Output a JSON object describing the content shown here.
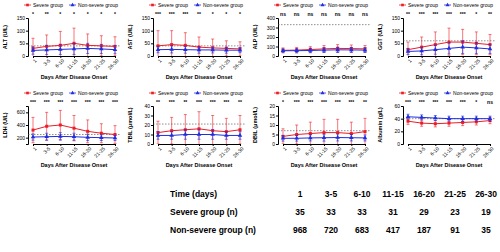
{
  "chart_data": [
    {
      "type": "line",
      "ylabel": "ALT (U/L)",
      "xlabel": "Days After Disease Onset",
      "categories": [
        "1",
        "3-5",
        "6-10",
        "11-15",
        "16-20",
        "21-25",
        "26-30"
      ],
      "ylim": [
        0,
        150
      ],
      "yticks": [
        0,
        50,
        100,
        150
      ],
      "reference_line": 40,
      "annotations": [
        "*",
        "**",
        "*",
        "*",
        "*",
        "*",
        "*"
      ],
      "series": [
        {
          "name": "Severe group",
          "color": "#ee1c25",
          "marker": "square",
          "values": [
            30,
            38,
            42,
            50,
            42,
            40,
            38
          ],
          "errors": [
            40,
            45,
            55,
            60,
            45,
            40,
            38
          ]
        },
        {
          "name": "Non-severe group",
          "color": "#1f2fe0",
          "marker": "triangle",
          "values": [
            22,
            24,
            26,
            28,
            30,
            28,
            25
          ],
          "errors": [
            15,
            18,
            20,
            22,
            20,
            18,
            16
          ]
        }
      ]
    },
    {
      "type": "line",
      "ylabel": "AST (U/L)",
      "xlabel": "Days After Disease Onset",
      "categories": [
        "1",
        "3-5",
        "6-10",
        "11-15",
        "16-20",
        "21-25",
        "26-30"
      ],
      "ylim": [
        0,
        150
      ],
      "yticks": [
        0,
        50,
        100,
        150
      ],
      "reference_line": 40,
      "annotations": [
        "***",
        "***",
        "***",
        "**",
        "*",
        "*",
        "*"
      ],
      "series": [
        {
          "name": "Severe group",
          "color": "#ee1c25",
          "marker": "square",
          "values": [
            40,
            45,
            42,
            35,
            32,
            30,
            28
          ],
          "errors": [
            60,
            55,
            50,
            40,
            35,
            30,
            28
          ]
        },
        {
          "name": "Non-severe group",
          "color": "#1f2fe0",
          "marker": "triangle",
          "values": [
            25,
            26,
            25,
            24,
            24,
            23,
            23
          ],
          "errors": [
            12,
            14,
            14,
            13,
            12,
            12,
            10
          ]
        }
      ]
    },
    {
      "type": "line",
      "ylabel": "ALP (U/L)",
      "xlabel": "Days After Disease Onset",
      "categories": [
        "1",
        "3-5",
        "6-10",
        "11-15",
        "16-20",
        "21-25",
        "26-30"
      ],
      "ylim": [
        0,
        400
      ],
      "yticks": [
        0,
        100,
        200,
        300,
        400
      ],
      "reference_line": 330,
      "annotations": [
        "ns",
        "ns",
        "ns",
        "ns",
        "ns",
        "ns",
        "ns"
      ],
      "series": [
        {
          "name": "Severe group",
          "color": "#ee1c25",
          "marker": "square",
          "values": [
            60,
            62,
            68,
            75,
            80,
            78,
            75
          ],
          "errors": [
            25,
            28,
            30,
            35,
            40,
            38,
            35
          ]
        },
        {
          "name": "Non-severe group",
          "color": "#1f2fe0",
          "marker": "triangle",
          "values": [
            55,
            56,
            58,
            62,
            65,
            64,
            62
          ],
          "errors": [
            20,
            22,
            24,
            25,
            28,
            26,
            25
          ]
        }
      ]
    },
    {
      "type": "line",
      "ylabel": "GGT (U/L)",
      "xlabel": "Days After Disease Onset",
      "categories": [
        "1",
        "3-5",
        "6-10",
        "11-15",
        "16-20",
        "21-25",
        "26-30"
      ],
      "ylim": [
        0,
        150
      ],
      "yticks": [
        0,
        50,
        100,
        150
      ],
      "reference_line": 60,
      "annotations": [
        "**",
        "***",
        "***",
        "***",
        "***",
        "*",
        "**"
      ],
      "series": [
        {
          "name": "Severe group",
          "color": "#ee1c25",
          "marker": "square",
          "values": [
            25,
            35,
            45,
            55,
            55,
            50,
            45
          ],
          "errors": [
            30,
            40,
            50,
            55,
            50,
            45,
            40
          ]
        },
        {
          "name": "Non-severe group",
          "color": "#1f2fe0",
          "marker": "triangle",
          "values": [
            18,
            20,
            25,
            30,
            35,
            32,
            28
          ],
          "errors": [
            12,
            15,
            18,
            22,
            25,
            22,
            18
          ]
        }
      ]
    },
    {
      "type": "line",
      "ylabel": "LDH (U/L)",
      "xlabel": "Days After Disease Onset",
      "categories": [
        "1",
        "3-5",
        "6-10",
        "11-15",
        "16-20",
        "21-25",
        "26-30"
      ],
      "ylim": [
        100,
        700
      ],
      "yticks": [
        200,
        400,
        600
      ],
      "reference_line": 250,
      "annotations": [
        "***",
        "***",
        "***",
        "***",
        "***",
        "***",
        "***"
      ],
      "series": [
        {
          "name": "Severe group",
          "color": "#ee1c25",
          "marker": "square",
          "values": [
            320,
            380,
            400,
            350,
            300,
            270,
            250
          ],
          "errors": [
            200,
            220,
            230,
            200,
            180,
            150,
            140
          ]
        },
        {
          "name": "Non-severe group",
          "color": "#1f2fe0",
          "marker": "triangle",
          "values": [
            210,
            215,
            220,
            215,
            205,
            200,
            195
          ],
          "errors": [
            50,
            55,
            60,
            55,
            50,
            45,
            40
          ]
        }
      ]
    },
    {
      "type": "line",
      "ylabel": "TBIL (μmol/L)",
      "xlabel": "Days After Disease Onset",
      "categories": [
        "1",
        "3-5",
        "6-10",
        "11-15",
        "16-20",
        "21-25",
        "26-30"
      ],
      "ylim": [
        0,
        40
      ],
      "yticks": [
        0,
        10,
        20,
        30,
        40
      ],
      "reference_line": 21,
      "annotations": [
        "**",
        "***",
        "**",
        "***",
        "***",
        "***",
        "**"
      ],
      "series": [
        {
          "name": "Severe group",
          "color": "#ee1c25",
          "marker": "square",
          "values": [
            12,
            14,
            15,
            16,
            14,
            13,
            15
          ],
          "errors": [
            12,
            14,
            16,
            18,
            16,
            14,
            15
          ]
        },
        {
          "name": "Non-severe group",
          "color": "#1f2fe0",
          "marker": "triangle",
          "values": [
            9,
            9,
            10,
            10,
            10,
            9,
            9
          ],
          "errors": [
            4,
            4,
            5,
            5,
            5,
            4,
            4
          ]
        }
      ]
    },
    {
      "type": "line",
      "ylabel": "DBIL (μmol/L)",
      "xlabel": "Days After Disease Onset",
      "categories": [
        "1",
        "3-5",
        "6-10",
        "11-15",
        "16-20",
        "21-25",
        "26-30"
      ],
      "ylim": [
        0,
        20
      ],
      "yticks": [
        0,
        5,
        10,
        15,
        20
      ],
      "reference_line": 7,
      "annotations": [
        "*",
        "***",
        "***",
        "***",
        "***",
        "***",
        "**"
      ],
      "series": [
        {
          "name": "Severe group",
          "color": "#ee1c25",
          "marker": "square",
          "values": [
            4,
            5,
            5.5,
            6,
            6,
            5.5,
            6.5
          ],
          "errors": [
            4,
            5,
            6,
            7,
            7,
            6,
            7
          ]
        },
        {
          "name": "Non-severe group",
          "color": "#1f2fe0",
          "marker": "triangle",
          "values": [
            3,
            3,
            3.2,
            3.3,
            3.4,
            3.3,
            3.2
          ],
          "errors": [
            1.5,
            1.5,
            1.6,
            1.8,
            1.8,
            1.7,
            1.6
          ]
        }
      ]
    },
    {
      "type": "line",
      "ylabel": "Albumin (g/L)",
      "xlabel": "Days After Disease Onset",
      "categories": [
        "1",
        "3-5",
        "6-10",
        "11-15",
        "16-20",
        "21-25",
        "26-30"
      ],
      "ylim": [
        0,
        60
      ],
      "yticks": [
        0,
        20,
        40,
        60
      ],
      "reference_line": 40,
      "annotations": [
        "***",
        "***",
        "***",
        "***",
        "***",
        "*",
        "ns"
      ],
      "series": [
        {
          "name": "Severe group",
          "color": "#ee1c25",
          "marker": "square",
          "values": [
            36,
            33,
            32,
            33,
            34,
            35,
            37
          ],
          "errors": [
            5,
            5,
            5,
            5,
            5,
            5,
            5
          ]
        },
        {
          "name": "Non-severe group",
          "color": "#1f2fe0",
          "marker": "triangle",
          "values": [
            43,
            42,
            41,
            40,
            40,
            40,
            40
          ],
          "errors": [
            4,
            4,
            4,
            4,
            4,
            4,
            4
          ]
        }
      ]
    }
  ],
  "table": {
    "header": [
      "Time (days)",
      "1",
      "3-5",
      "6-10",
      "11-15",
      "16-20",
      "21-25",
      "26-30"
    ],
    "rows": [
      [
        "Severe group (n)",
        35,
        33,
        33,
        31,
        29,
        23,
        19
      ],
      [
        "Non-severe group (n)",
        968,
        720,
        683,
        417,
        187,
        91,
        35
      ]
    ]
  }
}
